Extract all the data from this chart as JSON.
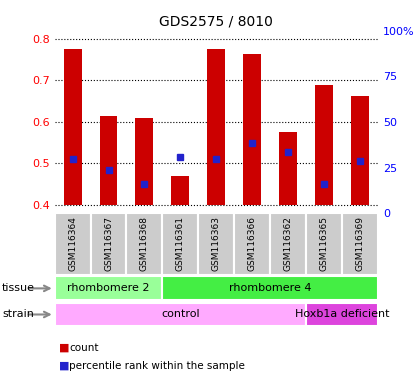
{
  "title": "GDS2575 / 8010",
  "samples": [
    "GSM116364",
    "GSM116367",
    "GSM116368",
    "GSM116361",
    "GSM116363",
    "GSM116366",
    "GSM116362",
    "GSM116365",
    "GSM116369"
  ],
  "bar_top": [
    0.775,
    0.615,
    0.61,
    0.47,
    0.775,
    0.763,
    0.575,
    0.69,
    0.663
  ],
  "bar_bottom": [
    0.4,
    0.4,
    0.4,
    0.4,
    0.4,
    0.4,
    0.4,
    0.4,
    0.4
  ],
  "percentile_y": [
    0.51,
    0.483,
    0.45,
    0.515,
    0.51,
    0.548,
    0.527,
    0.45,
    0.505
  ],
  "ylim_left": [
    0.38,
    0.82
  ],
  "ylim_right": [
    0,
    100
  ],
  "yticks_left": [
    0.4,
    0.5,
    0.6,
    0.7,
    0.8
  ],
  "yticks_right": [
    0,
    25,
    50,
    75,
    100
  ],
  "ytick_right_labels": [
    "0",
    "25",
    "50",
    "75",
    "100%"
  ],
  "bar_color": "#cc0000",
  "dot_color": "#2222cc",
  "tissue_groups": [
    {
      "label": "rhombomere 2",
      "start": 0,
      "end": 3,
      "color": "#99ff99"
    },
    {
      "label": "rhombomere 4",
      "start": 3,
      "end": 9,
      "color": "#44ee44"
    }
  ],
  "strain_groups": [
    {
      "label": "control",
      "start": 0,
      "end": 7,
      "color": "#ffaaff"
    },
    {
      "label": "Hoxb1a deficient",
      "start": 7,
      "end": 9,
      "color": "#dd44dd"
    }
  ],
  "legend_count_color": "#cc0000",
  "legend_pct_color": "#2222cc",
  "bg_color": "#ffffff",
  "plot_bg": "#ffffff",
  "grid_color": "#000000",
  "label_tissue": "tissue",
  "label_strain": "strain",
  "xticklabel_bg": "#cccccc"
}
